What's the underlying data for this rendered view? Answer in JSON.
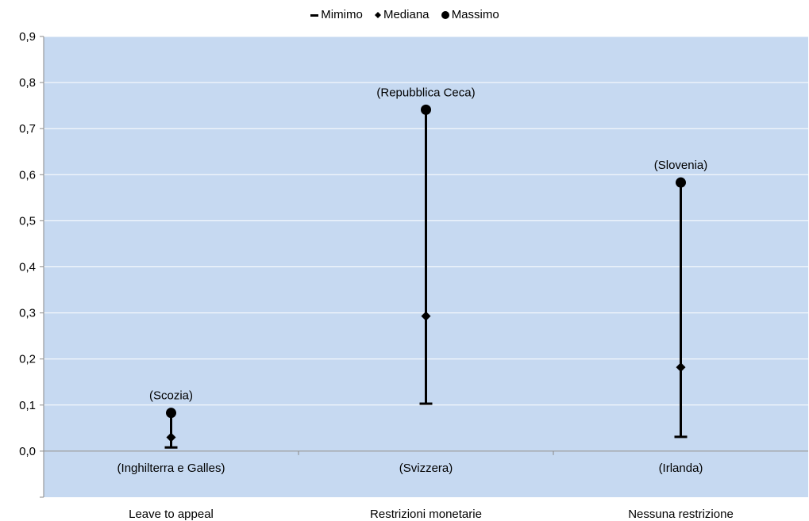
{
  "chart_data": {
    "type": "scatter",
    "title": "",
    "xlabel": "",
    "ylabel": "",
    "ylim": [
      -0.1,
      0.9
    ],
    "y_ticks": [
      "0,0",
      "0,1",
      "0,2",
      "0,3",
      "0,4",
      "0,5",
      "0,6",
      "0,7",
      "0,8",
      "0,9"
    ],
    "y_tick_values": [
      0.0,
      0.1,
      0.2,
      0.3,
      0.4,
      0.5,
      0.6,
      0.7,
      0.8,
      0.9
    ],
    "categories": [
      "Leave to appeal",
      "Restrizioni monetarie",
      "Nessuna restrizione"
    ],
    "grid": true,
    "legend_position": "top",
    "series": [
      {
        "name": "Mimimo",
        "marker": "dash",
        "values": [
          0.008,
          0.103,
          0.031
        ]
      },
      {
        "name": "Mediana",
        "marker": "diamond",
        "values": [
          0.03,
          0.293,
          0.182
        ]
      },
      {
        "name": "Massimo",
        "marker": "circle",
        "values": [
          0.083,
          0.741,
          0.583
        ]
      }
    ],
    "annotations": [
      {
        "category": 0,
        "at": "max",
        "text": "(Scozia)"
      },
      {
        "category": 0,
        "at": "min",
        "text": "(Inghilterra e Galles)"
      },
      {
        "category": 1,
        "at": "max",
        "text": "(Repubblica Ceca)"
      },
      {
        "category": 1,
        "at": "min",
        "text": "(Svizzera)"
      },
      {
        "category": 2,
        "at": "max",
        "text": "(Slovenia)"
      },
      {
        "category": 2,
        "at": "min",
        "text": "(Irlanda)"
      }
    ],
    "colors": {
      "plot_bg": "#c6d9f1",
      "gridline": "#ffffff",
      "marker": "#000000",
      "axis": "#888888"
    }
  }
}
